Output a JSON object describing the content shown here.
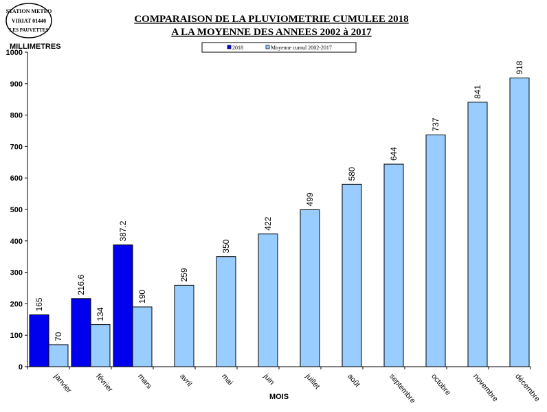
{
  "stamp": {
    "line1": "STATION METEO",
    "line2": "VIRIAT 01440",
    "line3": "LES PAUVETTES"
  },
  "chart_data": {
    "type": "bar",
    "title": "COMPARAISON DE LA PLUVIOMETRIE CUMULEE 2018",
    "subtitle": "A LA MOYENNE DES ANNEES 2002 à 2017",
    "ylabel": "MILLIMETRES",
    "xlabel": "MOIS",
    "ylim": [
      0,
      1000
    ],
    "yticks": [
      0,
      100,
      200,
      300,
      400,
      500,
      600,
      700,
      800,
      900,
      1000
    ],
    "grid": false,
    "legend": "top",
    "categories": [
      "janvier",
      "février",
      "mars",
      "avril",
      "mai",
      "juin",
      "juillet",
      "août",
      "septembre",
      "octobre",
      "novembre",
      "décembre"
    ],
    "series": [
      {
        "name": "2018",
        "color": "#0000ee",
        "values": [
          165,
          216.6,
          387.2,
          null,
          null,
          null,
          null,
          null,
          null,
          null,
          null,
          null
        ]
      },
      {
        "name": "Moyenne cumul 2002-2017",
        "color": "#99ccff",
        "values": [
          70,
          134,
          190,
          259,
          350,
          422,
          499,
          580,
          644,
          737,
          841,
          918
        ]
      }
    ]
  }
}
